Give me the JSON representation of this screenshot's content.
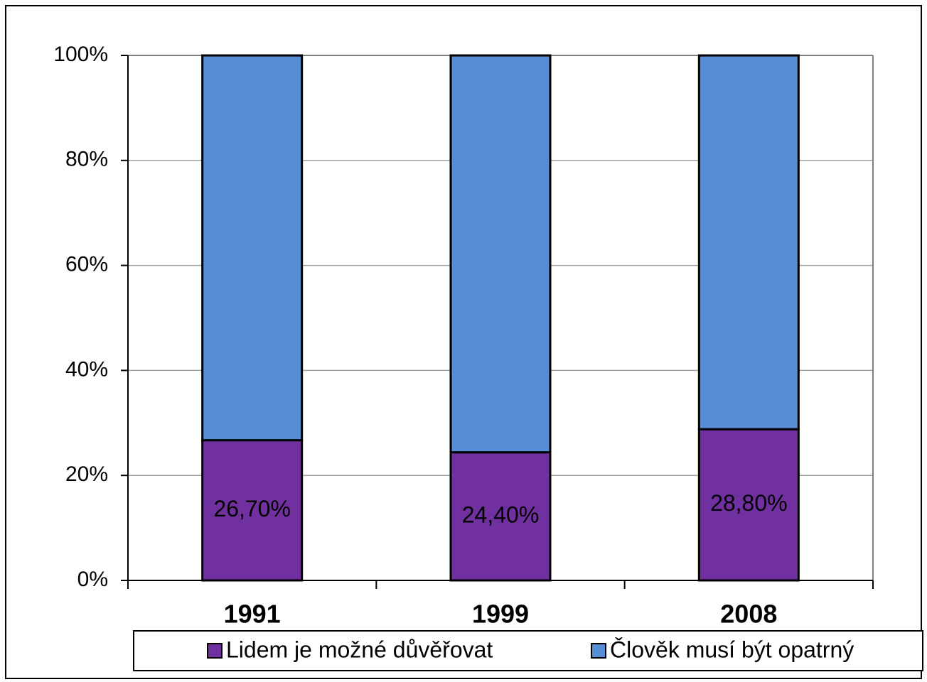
{
  "chart_data": {
    "type": "stacked_bar",
    "categories": [
      "1991",
      "1999",
      "2008"
    ],
    "series": [
      {
        "name": "Lidem je možné důvěřovat",
        "color": "#7030a0",
        "values": [
          26.7,
          24.4,
          28.8
        ],
        "value_labels": [
          "26,70%",
          "24,40%",
          "28,80%"
        ]
      },
      {
        "name": "Člověk musí být opatrný",
        "color": "#558ed5",
        "values": [
          73.3,
          75.6,
          71.2
        ]
      }
    ],
    "ylim": [
      0,
      100
    ],
    "yticks": [
      {
        "value": 0,
        "label": "0%"
      },
      {
        "value": 20,
        "label": "20%"
      },
      {
        "value": 40,
        "label": "40%"
      },
      {
        "value": 60,
        "label": "60%"
      },
      {
        "value": 80,
        "label": "80%"
      },
      {
        "value": 100,
        "label": "100%"
      }
    ],
    "grid": true,
    "legend": "bottom"
  }
}
